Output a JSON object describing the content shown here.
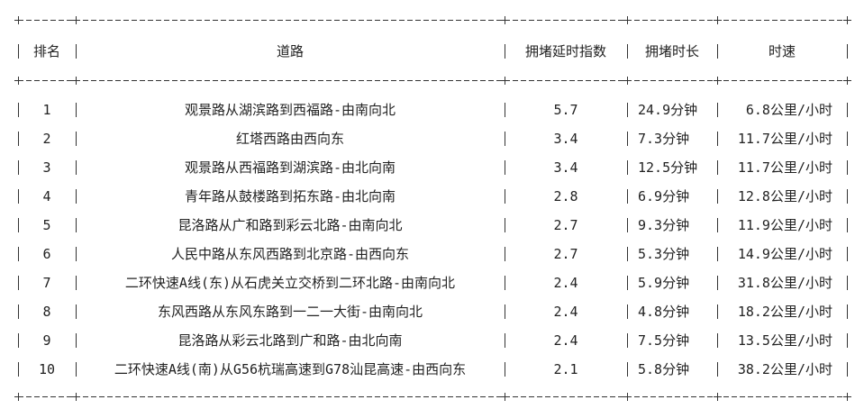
{
  "table": {
    "headers": [
      "排名",
      "道路",
      "拥堵延时指数",
      "拥堵时长",
      "时速"
    ],
    "rows": [
      [
        "1",
        "观景路从湖滨路到西福路-由南向北",
        "5.7",
        "24.9分钟",
        "6.8公里/小时"
      ],
      [
        "2",
        "红塔西路由西向东",
        "3.4",
        "7.3分钟",
        "11.7公里/小时"
      ],
      [
        "3",
        "观景路从西福路到湖滨路-由北向南",
        "3.4",
        "12.5分钟",
        "11.7公里/小时"
      ],
      [
        "4",
        "青年路从鼓楼路到拓东路-由北向南",
        "2.8",
        "6.9分钟",
        "12.8公里/小时"
      ],
      [
        "5",
        "昆洛路从广和路到彩云北路-由南向北",
        "2.7",
        "9.3分钟",
        "11.9公里/小时"
      ],
      [
        "6",
        "人民中路从东风西路到北京路-由西向东",
        "2.7",
        "5.3分钟",
        "14.9公里/小时"
      ],
      [
        "7",
        "二环快速A线(东)从石虎关立交桥到二环北路-由南向北",
        "2.4",
        "5.9分钟",
        "31.8公里/小时"
      ],
      [
        "8",
        "东风西路从东风东路到一二一大街-由南向北",
        "2.4",
        "4.8分钟",
        "18.2公里/小时"
      ],
      [
        "9",
        "昆洛路从彩云北路到广和路-由北向南",
        "2.4",
        "7.5分钟",
        "13.5公里/小时"
      ],
      [
        "10",
        "二环快速A线(南)从G56杭瑞高速到G78汕昆高速-由西向东",
        "2.1",
        "5.8分钟",
        "38.2公里/小时"
      ]
    ]
  }
}
